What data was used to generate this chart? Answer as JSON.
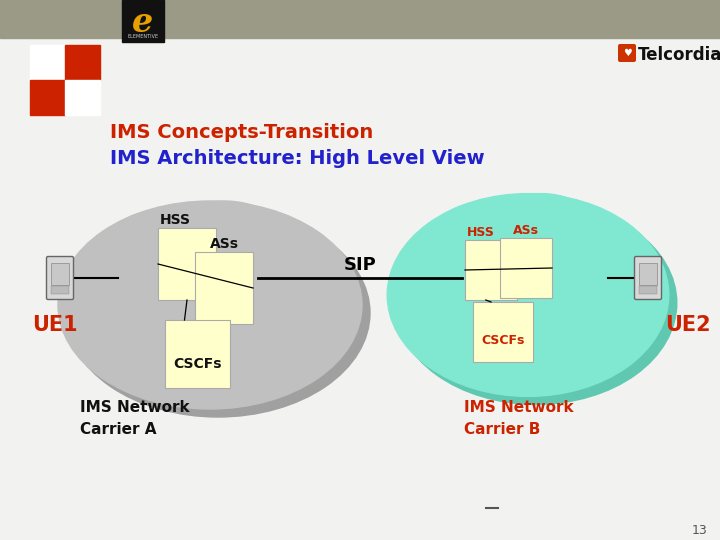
{
  "title_line1": "IMS Concepts-Transition",
  "title_line2": "IMS Architecture: High Level View",
  "title_color1": "#cc2200",
  "title_color2": "#2222cc",
  "bg_color": "#f2f2f0",
  "header_color": "#9a9a87",
  "cloud_a_color": "#c0c0c0",
  "cloud_a_shadow": "#a0a0a0",
  "cloud_b_color": "#80e8d0",
  "cloud_b_shadow": "#60c8b0",
  "box_color": "#ffffcc",
  "box_edge": "#aaaaaa",
  "label_black": "#111111",
  "label_color": "#cc2200",
  "ue_color": "#cc2200",
  "carrier_a_color": "#111111",
  "carrier_b_color": "#cc2200",
  "sip_label": "SIP",
  "ue1_label": "UE1",
  "ue2_label": "UE2",
  "hss_label_a": "HSS",
  "ass_label_a": "ASs",
  "cscfs_label_a": "CSCFs",
  "hss_label_b": "HSS",
  "ass_label_b": "ASs",
  "cscfs_label_b": "CSCFs",
  "carrier_a": "IMS Network\nCarrier A",
  "carrier_b": "IMS Network\nCarrier B",
  "page_num": "13"
}
